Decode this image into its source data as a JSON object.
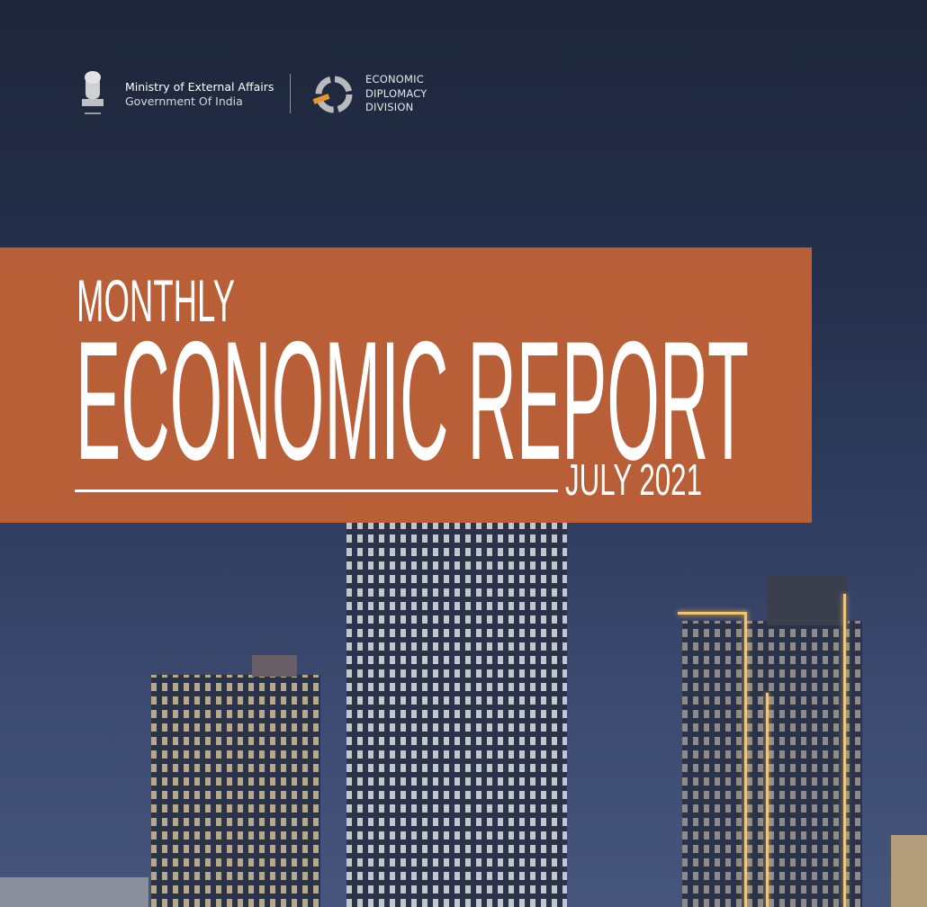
{
  "header": {
    "ministry_line1": "Ministry of External Affairs",
    "ministry_line2": "Government Of India",
    "division_lines": [
      "ECONOMIC",
      "DIPLOMACY",
      "DIVISION"
    ]
  },
  "cover": {
    "title_small": "MONTHLY",
    "title_large": "ECONOMIC REPORT",
    "date": "JULY 2021"
  },
  "colors": {
    "band": "#b85f38",
    "background": "#232d47",
    "logo_accent": "#e8952c"
  }
}
